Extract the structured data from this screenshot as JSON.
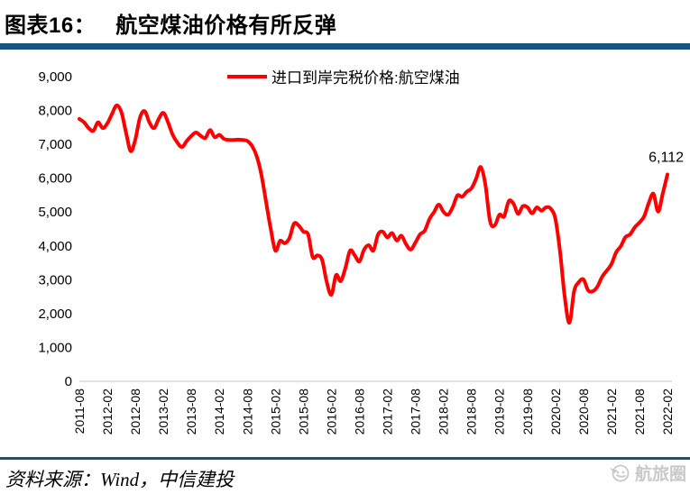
{
  "header": {
    "figure_label": "图表16：",
    "title": "航空煤油价格有所反弹"
  },
  "footer": {
    "source": "资料来源：Wind，中信建投",
    "watermark_text": "航旅圈"
  },
  "colors": {
    "accent_navy": "#16537F",
    "line_red": "#FF0000",
    "axis_gray": "#D8D8D8",
    "watermark_gray": "#C9C9C9"
  },
  "chart_data": {
    "type": "line",
    "title": "航空煤油价格有所反弹",
    "legend": [
      "进口到岸完税价格:航空煤油"
    ],
    "legend_position": "top-center",
    "grid": "baseline-only",
    "line_color": "#FF0000",
    "x_start": "2011-08",
    "x_end": "2022-02",
    "x_freq": "monthly",
    "ylim": [
      0,
      9000
    ],
    "y_ticks": [
      0,
      1000,
      2000,
      3000,
      4000,
      5000,
      6000,
      7000,
      8000,
      9000
    ],
    "y_tick_labels": [
      "0",
      "1,000",
      "2,000",
      "3,000",
      "4,000",
      "5,000",
      "6,000",
      "7,000",
      "8,000",
      "9,000"
    ],
    "x_tick_labels": [
      "2011-08",
      "2012-02",
      "2012-08",
      "2013-02",
      "2013-08",
      "2014-02",
      "2014-08",
      "2015-02",
      "2015-08",
      "2016-02",
      "2016-08",
      "2017-02",
      "2017-08",
      "2018-02",
      "2018-08",
      "2019-02",
      "2019-08",
      "2020-02",
      "2020-08",
      "2021-02",
      "2021-08",
      "2022-02"
    ],
    "x_tick_every_n_months": 6,
    "series": [
      {
        "name": "进口到岸完税价格:航空煤油",
        "values": [
          7750,
          7650,
          7480,
          7400,
          7650,
          7480,
          7620,
          7900,
          8150,
          7950,
          7350,
          6800,
          7150,
          7800,
          7980,
          7650,
          7480,
          7750,
          7930,
          7650,
          7280,
          7050,
          6920,
          7100,
          7250,
          7350,
          7250,
          7190,
          7420,
          7210,
          7280,
          7160,
          7130,
          7130,
          7140,
          7130,
          7100,
          6950,
          6650,
          6100,
          5300,
          4500,
          3860,
          4150,
          4080,
          4230,
          4660,
          4600,
          4420,
          4340,
          3670,
          3720,
          3590,
          2930,
          2560,
          3140,
          2960,
          3350,
          3860,
          3720,
          3540,
          3890,
          4020,
          3860,
          4340,
          4420,
          4250,
          4380,
          4160,
          4300,
          4050,
          3890,
          4100,
          4340,
          4450,
          4790,
          5000,
          5220,
          5010,
          4920,
          5150,
          5490,
          5450,
          5600,
          5700,
          5980,
          6330,
          5800,
          4720,
          4610,
          4920,
          4870,
          5320,
          5250,
          4950,
          5170,
          5140,
          4960,
          5140,
          5040,
          5140,
          5100,
          4790,
          3810,
          2480,
          1730,
          2660,
          2930,
          3010,
          2690,
          2660,
          2800,
          3090,
          3270,
          3460,
          3810,
          3990,
          4260,
          4340,
          4550,
          4690,
          4870,
          5270,
          5540,
          5010,
          5550,
          6112
        ]
      }
    ],
    "end_annotation": {
      "text": "6,112",
      "value": 6112,
      "month": "2022-02"
    }
  }
}
